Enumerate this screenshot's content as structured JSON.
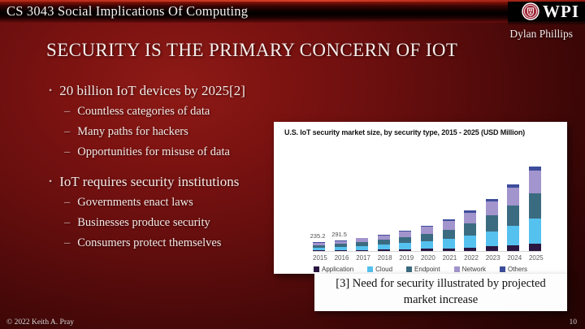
{
  "header": {
    "course_title": "CS 3043 Social Implications Of Computing",
    "logo_text": "WPI",
    "author": "Dylan Phillips"
  },
  "slide": {
    "title": "SECURITY IS THE PRIMARY CONCERN OF IOT",
    "bullets": [
      {
        "text": "20 billion IoT devices by 2025[2]",
        "subs": [
          "Countless categories of data",
          "Many paths for hackers",
          "Opportunities for misuse of data"
        ]
      },
      {
        "text": "IoT requires security institutions",
        "subs": [
          "Governments enact laws",
          "Businesses produce security",
          "Consumers protect themselves"
        ]
      }
    ],
    "caption": "[3] Need for security illustrated by projected market increase"
  },
  "footer": {
    "copyright": "© 2022 Keith A. Pray",
    "page_number": "10"
  },
  "colors": {
    "slide_background": "#6b0f0f",
    "topbar_black": "#000000",
    "text_light": "#f3e9e6",
    "panel_white": "#ffffff"
  },
  "chart_data": {
    "type": "bar",
    "stacked": true,
    "title": "U.S. IoT security market size, by security type, 2015 - 2025 (USD Million)",
    "categories": [
      "2015",
      "2016",
      "2017",
      "2018",
      "2019",
      "2020",
      "2021",
      "2022",
      "2023",
      "2024",
      "2025"
    ],
    "series": [
      {
        "name": "Application",
        "color": "#2a1640",
        "values": [
          20,
          26,
          33,
          40,
          50,
          63,
          78,
          99,
          129,
          164,
          209
        ]
      },
      {
        "name": "Cloud",
        "color": "#55c1ee",
        "values": [
          68,
          85,
          106,
          130,
          162,
          203,
          252,
          319,
          415,
          528,
          673
        ]
      },
      {
        "name": "Endpoint",
        "color": "#3b6b80",
        "values": [
          71,
          87,
          110,
          135,
          168,
          210,
          261,
          330,
          429,
          546,
          696
        ]
      },
      {
        "name": "Network",
        "color": "#a294cc",
        "values": [
          64.2,
          78.5,
          98,
          122,
          152,
          189,
          235,
          297,
          385,
          491,
          626
        ]
      },
      {
        "name": "Others",
        "color": "#3d4d9b",
        "values": [
          12,
          15,
          18,
          23,
          28,
          35,
          44,
          55,
          72,
          91,
          116
        ]
      }
    ],
    "totals": [
      235.2,
      291.5,
      365,
      450,
      560,
      700,
      870,
      1100,
      1430,
      1820,
      2320
    ],
    "point_labels": {
      "2015": "235.2",
      "2016": "291.5"
    },
    "xlabel": "",
    "ylabel": "USD Million",
    "ylim": [
      0,
      2500
    ],
    "grid": false,
    "legend_position": "bottom"
  }
}
